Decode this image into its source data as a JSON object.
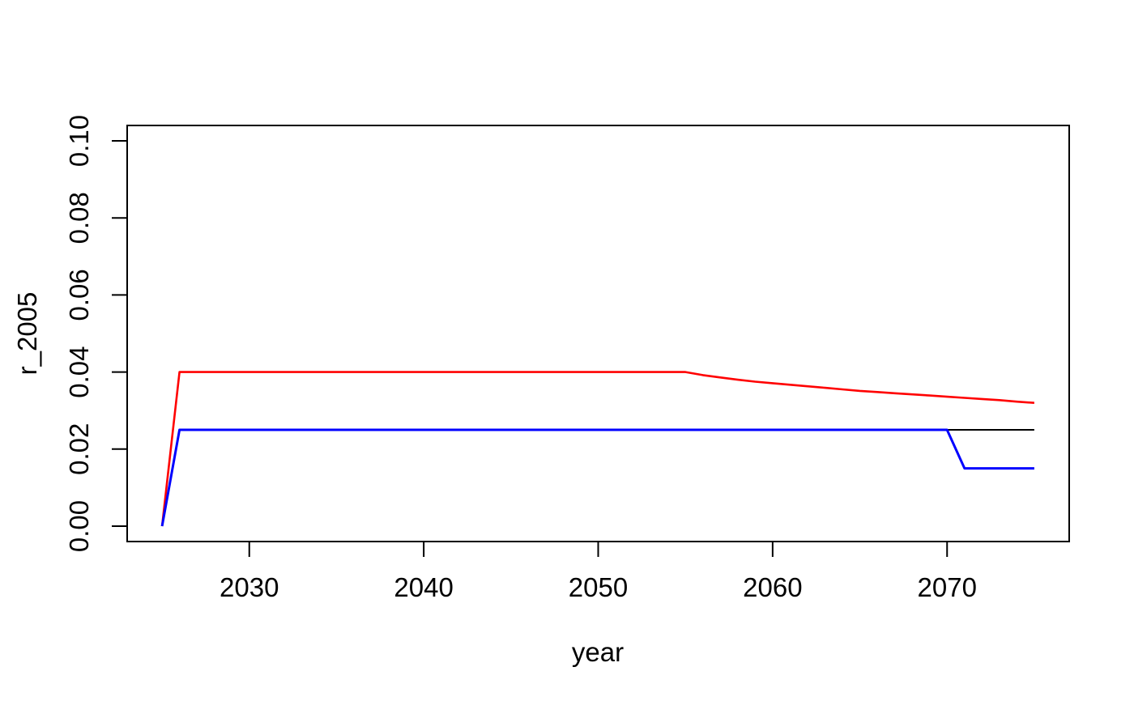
{
  "page": {
    "background_color": "#ffffff"
  },
  "chart_data": {
    "type": "line",
    "title": "",
    "xlabel": "year",
    "ylabel": "r_2005",
    "grid": false,
    "legend": "none",
    "frame": true,
    "axis_color": "#000000",
    "x_axis": {
      "range": [
        2023,
        2077
      ],
      "ticks": [
        {
          "value": 2030,
          "label": "2030"
        },
        {
          "value": 2040,
          "label": "2040"
        },
        {
          "value": 2050,
          "label": "2050"
        },
        {
          "value": 2060,
          "label": "2060"
        },
        {
          "value": 2070,
          "label": "2070"
        }
      ]
    },
    "y_axis": {
      "range": [
        -0.004,
        0.104
      ],
      "ticks": [
        {
          "value": 0.0,
          "label": "0.00"
        },
        {
          "value": 0.02,
          "label": "0.02"
        },
        {
          "value": 0.04,
          "label": "0.04"
        },
        {
          "value": 0.06,
          "label": "0.06"
        },
        {
          "value": 0.08,
          "label": "0.08"
        },
        {
          "value": 0.1,
          "label": "0.10"
        }
      ]
    },
    "series": [
      {
        "name": "black-line",
        "color": "#000000",
        "width": 2,
        "points": [
          [
            2025,
            0.0
          ],
          [
            2026,
            0.025
          ],
          [
            2075,
            0.025
          ]
        ]
      },
      {
        "name": "red-line",
        "color": "#ff0000",
        "width": 2.6,
        "points": [
          [
            2025,
            0.0
          ],
          [
            2026,
            0.04
          ],
          [
            2055,
            0.04
          ],
          [
            2056,
            0.0392
          ],
          [
            2057,
            0.0386
          ],
          [
            2058,
            0.038
          ],
          [
            2059,
            0.0375
          ],
          [
            2060,
            0.0371
          ],
          [
            2061,
            0.0367
          ],
          [
            2062,
            0.0363
          ],
          [
            2063,
            0.0359
          ],
          [
            2064,
            0.0355
          ],
          [
            2065,
            0.0351
          ],
          [
            2066,
            0.0348
          ],
          [
            2067,
            0.0345
          ],
          [
            2068,
            0.0342
          ],
          [
            2069,
            0.0339
          ],
          [
            2070,
            0.0336
          ],
          [
            2071,
            0.0333
          ],
          [
            2072,
            0.033
          ],
          [
            2073,
            0.0327
          ],
          [
            2074,
            0.0323
          ],
          [
            2075,
            0.032
          ]
        ]
      },
      {
        "name": "blue-line",
        "color": "#0000ff",
        "width": 3,
        "points": [
          [
            2025,
            0.0
          ],
          [
            2026,
            0.025
          ],
          [
            2070,
            0.025
          ],
          [
            2071,
            0.015
          ],
          [
            2075,
            0.015
          ]
        ]
      }
    ]
  }
}
